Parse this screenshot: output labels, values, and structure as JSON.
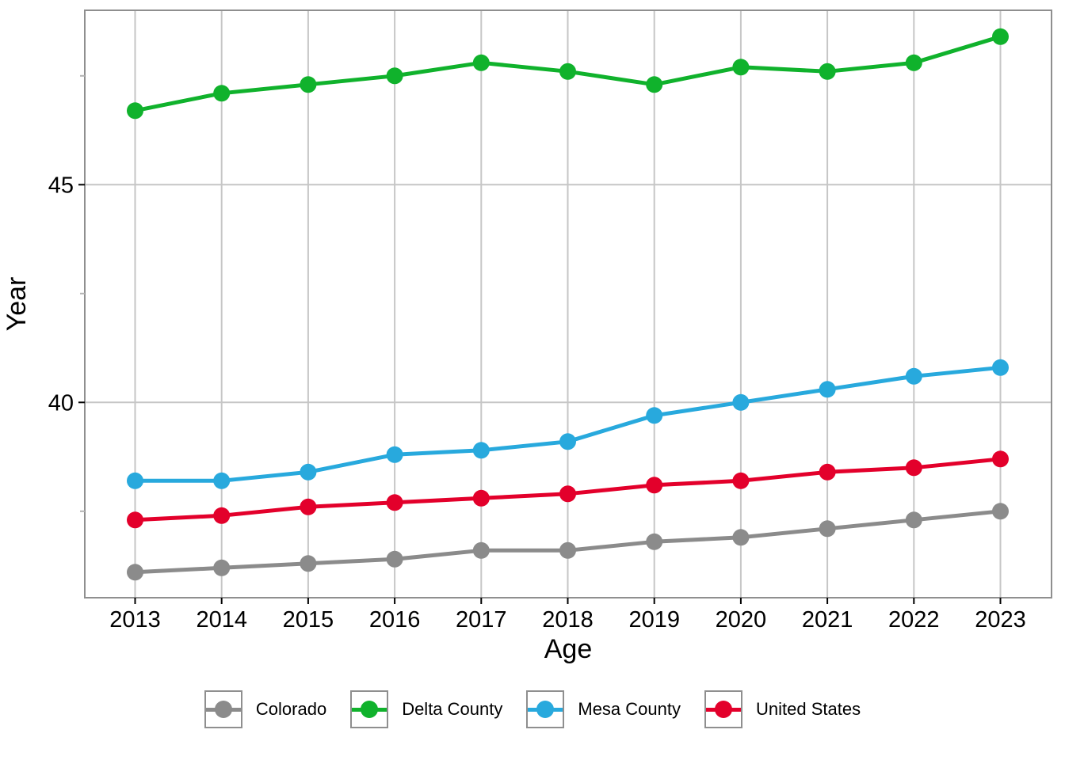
{
  "chart_data": {
    "type": "line",
    "title": "",
    "xlabel": "Age",
    "ylabel": "Year",
    "x": [
      2013,
      2014,
      2015,
      2016,
      2017,
      2018,
      2019,
      2020,
      2021,
      2022,
      2023
    ],
    "x_tick_labels": [
      "2013",
      "2014",
      "2015",
      "2016",
      "2017",
      "2018",
      "2019",
      "2020",
      "2021",
      "2022",
      "2023"
    ],
    "yticks": [
      40,
      45
    ],
    "y_tick_labels": [
      "40",
      "45"
    ],
    "y_minor_ticks": [
      37.5,
      42.5,
      47.5
    ],
    "ylim": [
      35.5,
      49.0
    ],
    "grid": "vertical gridline per year, horizontal gridlines at 40 and 45, gray panel border",
    "legend_position": "bottom",
    "series": [
      {
        "name": "Colorado",
        "color": "#8b8b8b",
        "values": [
          36.1,
          36.2,
          36.3,
          36.4,
          36.6,
          36.6,
          36.8,
          36.9,
          37.1,
          37.3,
          37.5
        ]
      },
      {
        "name": "Delta County",
        "color": "#10b22c",
        "values": [
          46.7,
          47.1,
          47.3,
          47.5,
          47.8,
          47.6,
          47.3,
          47.7,
          47.6,
          47.8,
          48.4
        ]
      },
      {
        "name": "Mesa County",
        "color": "#28a9dd",
        "values": [
          38.2,
          38.2,
          38.4,
          38.8,
          38.9,
          39.1,
          39.7,
          40.0,
          40.3,
          40.6,
          40.8
        ]
      },
      {
        "name": "United States",
        "color": "#e3002b",
        "values": [
          37.3,
          37.4,
          37.6,
          37.7,
          37.8,
          37.9,
          38.1,
          38.2,
          38.4,
          38.5,
          38.7
        ]
      }
    ]
  }
}
